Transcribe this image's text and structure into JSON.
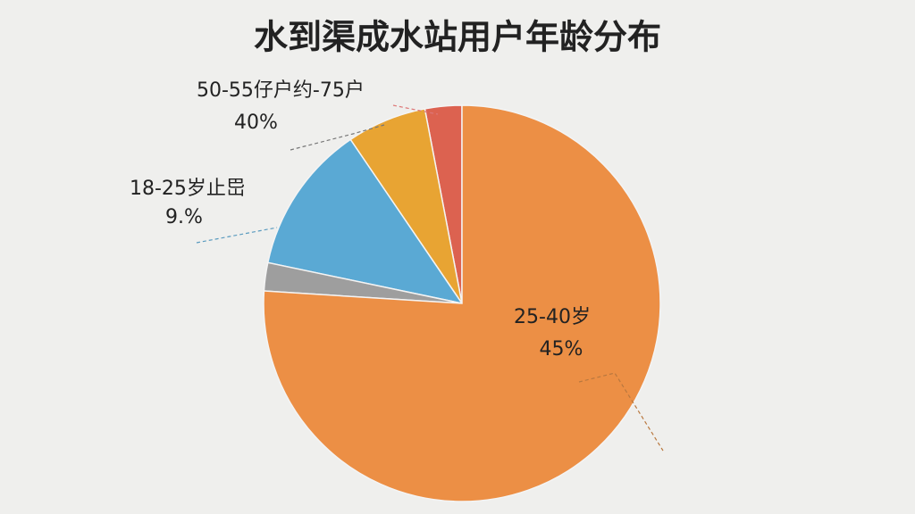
{
  "chart_data": {
    "type": "pie",
    "title": "水到渠成水站用户年龄分布",
    "values": [
      3,
      6.5,
      12.2,
      2.3,
      76
    ],
    "colors": [
      "#dc6250",
      "#e8a433",
      "#5aa9d4",
      "#9e9e9e",
      "#ec8f45"
    ],
    "annotations": [
      {
        "text": "50-55仔户约-75户"
      },
      {
        "text": "40%"
      },
      {
        "text": "18-25岁止岊"
      },
      {
        "text": "9.%"
      },
      {
        "text": "25-40岁"
      },
      {
        "text": "45%"
      }
    ]
  }
}
